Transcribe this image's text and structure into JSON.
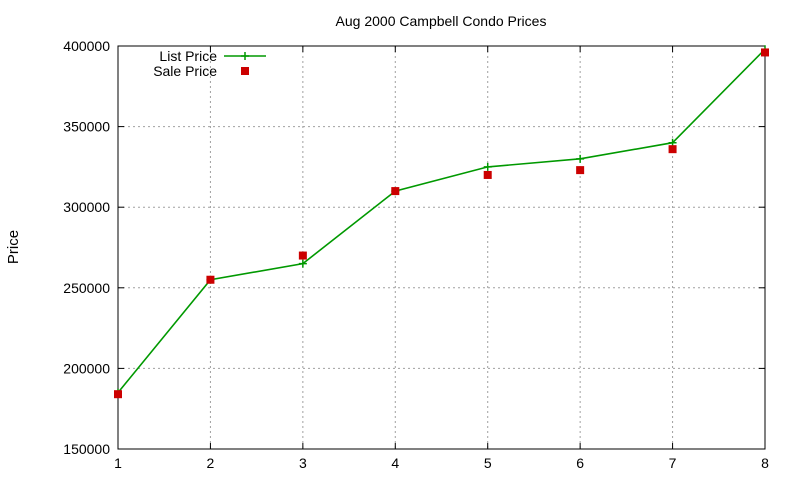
{
  "chart_data": {
    "type": "line",
    "title": "Aug 2000 Campbell Condo Prices",
    "xlabel": "",
    "ylabel": "Price",
    "xlim": [
      1,
      8
    ],
    "ylim": [
      150000,
      400000
    ],
    "x_ticks": [
      1,
      2,
      3,
      4,
      5,
      6,
      7,
      8
    ],
    "y_ticks": [
      150000,
      200000,
      250000,
      300000,
      350000,
      400000
    ],
    "grid": true,
    "legend_position": "top-left",
    "series": [
      {
        "name": "List Price",
        "style": "line-with-plus-markers",
        "color": "#009900",
        "x": [
          1,
          2,
          3,
          4,
          5,
          6,
          7,
          8
        ],
        "values": [
          185000,
          255000,
          265000,
          310000,
          325000,
          330000,
          340000,
          398000
        ]
      },
      {
        "name": "Sale Price",
        "style": "square-markers",
        "color": "#cc0000",
        "x": [
          1,
          2,
          3,
          4,
          5,
          6,
          7,
          8
        ],
        "values": [
          184000,
          255000,
          270000,
          310000,
          320000,
          323000,
          336000,
          396000
        ]
      }
    ]
  }
}
